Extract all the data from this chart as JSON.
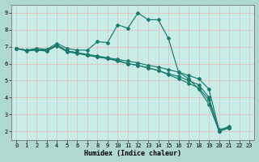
{
  "xlabel": "Humidex (Indice chaleur)",
  "background_color": "#aed8d0",
  "plot_bg_color": "#c8ece6",
  "grid_color": "#e8b8b8",
  "line_color": "#1a7a6e",
  "xlim": [
    -0.5,
    23.5
  ],
  "ylim": [
    1.5,
    9.5
  ],
  "xticks": [
    0,
    1,
    2,
    3,
    4,
    5,
    6,
    7,
    8,
    9,
    10,
    11,
    12,
    13,
    14,
    15,
    16,
    17,
    18,
    19,
    20,
    21,
    22,
    23
  ],
  "yticks": [
    2,
    3,
    4,
    5,
    6,
    7,
    8,
    9
  ],
  "line1_x": [
    0,
    1,
    2,
    3,
    4,
    5,
    6,
    7,
    8,
    9,
    10,
    11,
    12,
    13,
    14,
    15,
    16,
    17,
    18,
    19,
    20,
    21
  ],
  "line1_y": [
    6.9,
    6.8,
    6.9,
    6.85,
    7.2,
    6.9,
    6.8,
    6.8,
    7.3,
    7.25,
    8.3,
    8.1,
    9.0,
    8.6,
    8.6,
    7.5,
    5.5,
    5.1,
    4.5,
    3.6,
    2.0,
    2.3
  ],
  "line2_x": [
    0,
    1,
    2,
    3,
    4,
    5,
    6,
    7,
    8,
    9,
    10,
    11,
    12,
    13,
    14,
    15,
    16,
    17,
    18,
    19,
    20,
    21
  ],
  "line2_y": [
    6.9,
    6.8,
    6.85,
    6.8,
    7.1,
    6.75,
    6.65,
    6.55,
    6.45,
    6.35,
    6.25,
    6.15,
    6.05,
    5.9,
    5.8,
    5.65,
    5.5,
    5.3,
    5.1,
    4.5,
    2.1,
    2.25
  ],
  "line3_x": [
    0,
    1,
    2,
    3,
    4,
    5,
    6,
    7,
    8,
    9,
    10,
    11,
    12,
    13,
    14,
    15,
    16,
    17,
    18,
    19,
    20,
    21
  ],
  "line3_y": [
    6.9,
    6.75,
    6.8,
    6.75,
    7.1,
    6.75,
    6.65,
    6.5,
    6.4,
    6.3,
    6.2,
    6.0,
    5.9,
    5.75,
    5.6,
    5.4,
    5.25,
    5.0,
    4.75,
    4.0,
    2.0,
    2.2
  ],
  "line4_x": [
    0,
    1,
    2,
    3,
    4,
    5,
    6,
    7,
    8,
    9,
    10,
    11,
    12,
    13,
    14,
    15,
    16,
    17,
    18,
    19,
    20,
    21
  ],
  "line4_y": [
    6.9,
    6.8,
    6.8,
    6.75,
    7.05,
    6.7,
    6.6,
    6.5,
    6.4,
    6.3,
    6.15,
    6.0,
    5.9,
    5.75,
    5.6,
    5.35,
    5.1,
    4.85,
    4.55,
    3.85,
    2.0,
    2.2
  ]
}
